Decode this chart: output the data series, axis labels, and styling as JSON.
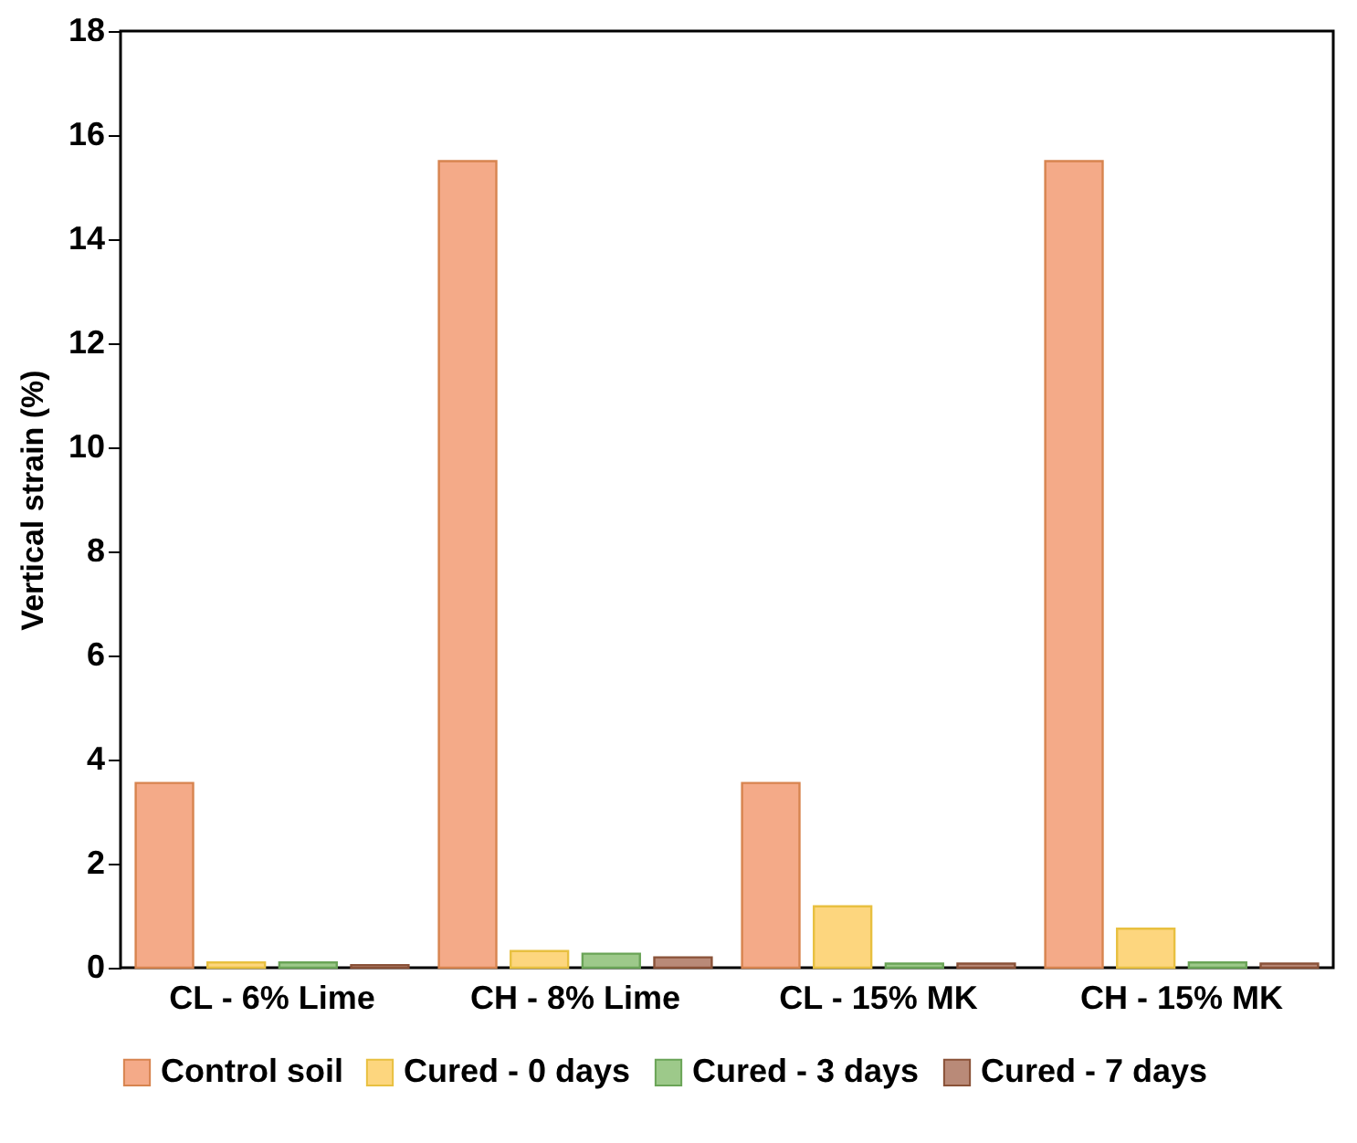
{
  "chart_data": {
    "type": "bar",
    "ylabel": "Vertical strain (%)",
    "categories": [
      "CL - 6% Lime",
      "CH - 8% Lime",
      "CL - 15% MK",
      "CH - 15% MK"
    ],
    "series": [
      {
        "name": "Control soil",
        "color": "#f4aa88",
        "values": [
          3.55,
          15.5,
          3.55,
          15.5
        ]
      },
      {
        "name": "Cured - 0 days",
        "color": "#fdd67e",
        "values": [
          0.1,
          0.32,
          1.18,
          0.75
        ]
      },
      {
        "name": "Cured - 3 days",
        "color": "#9dc98a",
        "values": [
          0.1,
          0.27,
          0.08,
          0.1
        ]
      },
      {
        "name": "Cured - 7 days",
        "color": "#b98a78",
        "values": [
          0.05,
          0.2,
          0.08,
          0.08
        ]
      }
    ],
    "ylim": [
      0,
      18
    ],
    "yticks": [
      0,
      2,
      4,
      6,
      8,
      10,
      12,
      14,
      16,
      18
    ],
    "grid": false,
    "legend": "bottom"
  }
}
